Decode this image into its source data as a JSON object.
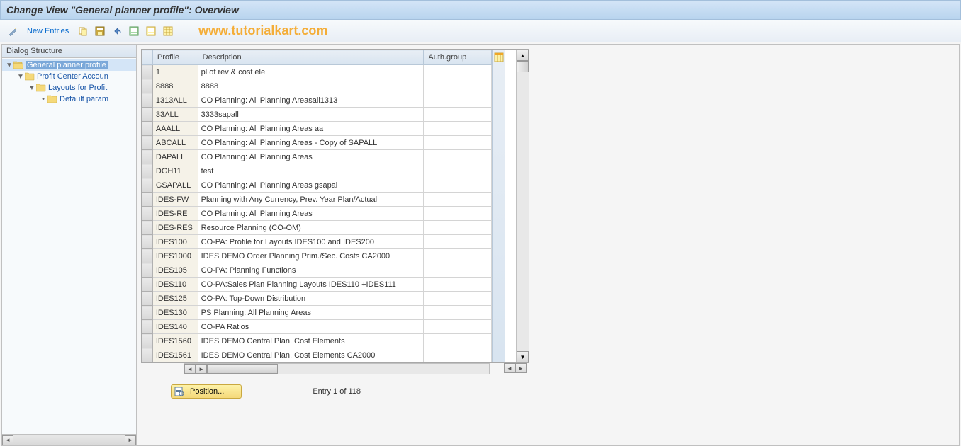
{
  "title": "Change View \"General planner profile\": Overview",
  "watermark": "www.tutorialkart.com",
  "toolbar": {
    "new_entries": "New Entries"
  },
  "tree": {
    "header": "Dialog Structure",
    "nodes": [
      {
        "indent": 0,
        "arrow": "▼",
        "folder": "open",
        "label": "General planner profile",
        "selected": true
      },
      {
        "indent": 1,
        "arrow": "▼",
        "folder": "closed",
        "label": "Profit Center Accoun",
        "selected": false
      },
      {
        "indent": 2,
        "arrow": "▼",
        "folder": "closed",
        "label": "Layouts for Profit",
        "selected": false
      },
      {
        "indent": 3,
        "arrow": "•",
        "folder": "closed",
        "label": "Default param",
        "selected": false
      }
    ]
  },
  "table": {
    "columns": {
      "profile": "Profile",
      "description": "Description",
      "auth": "Auth.group"
    },
    "rows": [
      {
        "profile": "1",
        "description": "pl of rev & cost ele",
        "auth": ""
      },
      {
        "profile": "8888",
        "description": "8888",
        "auth": ""
      },
      {
        "profile": "1313ALL",
        "description": "CO Planning: All Planning Areasall1313",
        "auth": ""
      },
      {
        "profile": "33ALL",
        "description": "3333sapall",
        "auth": ""
      },
      {
        "profile": "AAALL",
        "description": "CO Planning: All Planning Areas aa",
        "auth": ""
      },
      {
        "profile": "ABCALL",
        "description": "CO Planning: All Planning Areas - Copy of SAPALL",
        "auth": ""
      },
      {
        "profile": "DAPALL",
        "description": "CO Planning: All Planning Areas",
        "auth": ""
      },
      {
        "profile": "DGH11",
        "description": "test",
        "auth": ""
      },
      {
        "profile": "GSAPALL",
        "description": "CO Planning: All Planning Areas gsapal",
        "auth": ""
      },
      {
        "profile": "IDES-FW",
        "description": "Planning with Any Currency, Prev. Year Plan/Actual",
        "auth": ""
      },
      {
        "profile": "IDES-RE",
        "description": "CO Planning: All Planning Areas",
        "auth": ""
      },
      {
        "profile": "IDES-RES",
        "description": "Resource Planning (CO-OM)",
        "auth": ""
      },
      {
        "profile": "IDES100",
        "description": "CO-PA: Profile for Layouts IDES100 and IDES200",
        "auth": ""
      },
      {
        "profile": "IDES1000",
        "description": "IDES DEMO Order Planning Prim./Sec. Costs   CA2000",
        "auth": ""
      },
      {
        "profile": "IDES105",
        "description": "CO-PA: Planning Functions",
        "auth": ""
      },
      {
        "profile": "IDES110",
        "description": "CO-PA:Sales Plan Planning Layouts IDES110 +IDES111",
        "auth": ""
      },
      {
        "profile": "IDES125",
        "description": "CO-PA: Top-Down Distribution",
        "auth": ""
      },
      {
        "profile": "IDES130",
        "description": "PS Planning: All Planning Areas",
        "auth": ""
      },
      {
        "profile": "IDES140",
        "description": "CO-PA Ratios",
        "auth": ""
      },
      {
        "profile": "IDES1560",
        "description": "IDES DEMO Central Plan. Cost Elements",
        "auth": ""
      },
      {
        "profile": "IDES1561",
        "description": "IDES DEMO Central Plan. Cost Elements       CA2000",
        "auth": ""
      }
    ]
  },
  "footer": {
    "position_label": "Position...",
    "entry_text": "Entry 1 of 118"
  },
  "colors": {
    "folder_open": "#f5d97a",
    "folder_closed": "#f5d97a"
  }
}
